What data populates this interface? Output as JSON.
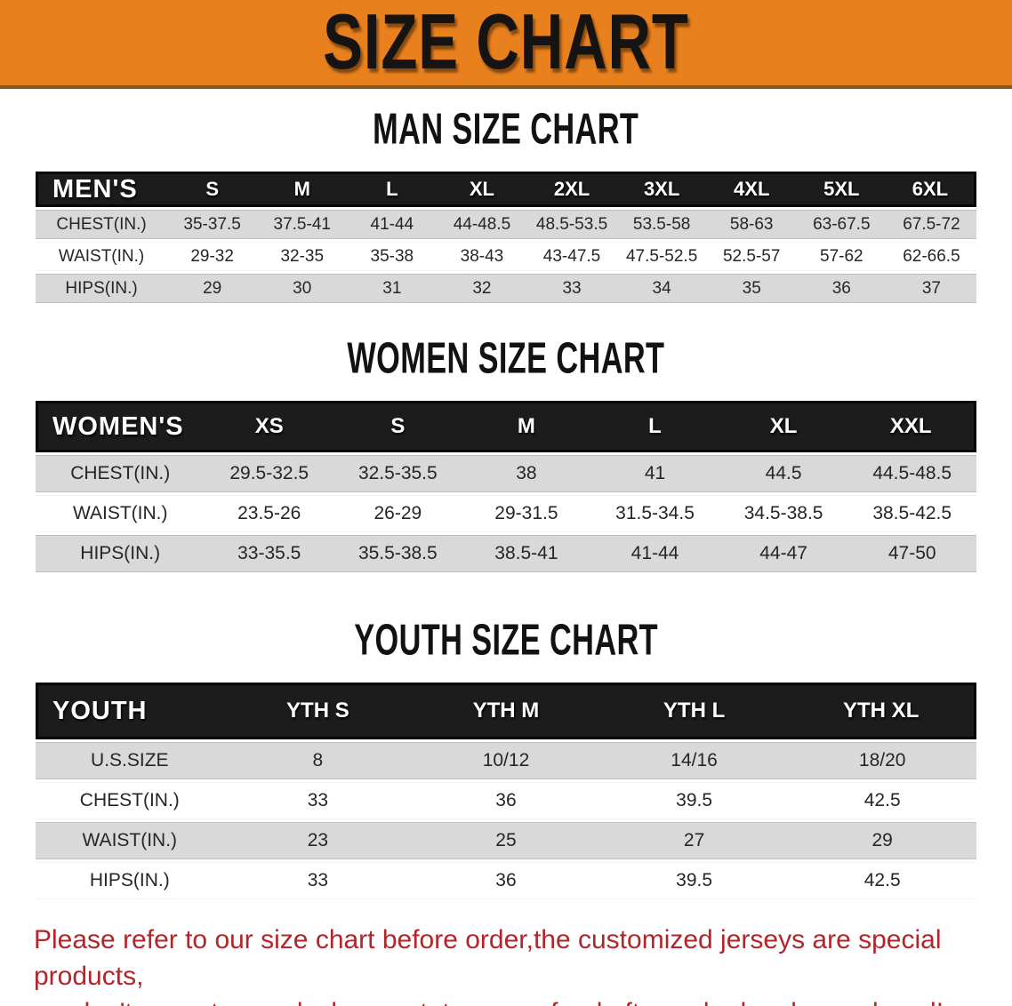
{
  "banner": {
    "title": "SIZE CHART"
  },
  "sections": {
    "men": {
      "heading": "MAN SIZE CHART",
      "table": {
        "header": [
          "MEN'S",
          "S",
          "M",
          "L",
          "XL",
          "2XL",
          "3XL",
          "4XL",
          "5XL",
          "6XL"
        ],
        "rows": [
          [
            "CHEST(IN.)",
            "35-37.5",
            "37.5-41",
            "41-44",
            "44-48.5",
            "48.5-53.5",
            "53.5-58",
            "58-63",
            "63-67.5",
            "67.5-72"
          ],
          [
            "WAIST(IN.)",
            "29-32",
            "32-35",
            "35-38",
            "38-43",
            "43-47.5",
            "47.5-52.5",
            "52.5-57",
            "57-62",
            "62-66.5"
          ],
          [
            "HIPS(IN.)",
            "29",
            "30",
            "31",
            "32",
            "33",
            "34",
            "35",
            "36",
            "37"
          ]
        ]
      }
    },
    "women": {
      "heading": "WOMEN SIZE CHART",
      "table": {
        "header": [
          "WOMEN'S",
          "XS",
          "S",
          "M",
          "L",
          "XL",
          "XXL"
        ],
        "rows": [
          [
            "CHEST(IN.)",
            "29.5-32.5",
            "32.5-35.5",
            "38",
            "41",
            "44.5",
            "44.5-48.5"
          ],
          [
            "WAIST(IN.)",
            "23.5-26",
            "26-29",
            "29-31.5",
            "31.5-34.5",
            "34.5-38.5",
            "38.5-42.5"
          ],
          [
            "HIPS(IN.)",
            "33-35.5",
            "35.5-38.5",
            "38.5-41",
            "41-44",
            "44-47",
            "47-50"
          ]
        ]
      }
    },
    "youth": {
      "heading": "YOUTH SIZE CHART",
      "table": {
        "header": [
          "YOUTH",
          "YTH S",
          "YTH M",
          "YTH L",
          "YTH XL"
        ],
        "rows": [
          [
            "U.S.SIZE",
            "8",
            "10/12",
            "14/16",
            "18/20"
          ],
          [
            "CHEST(IN.)",
            "33",
            "36",
            "39.5",
            "42.5"
          ],
          [
            "WAIST(IN.)",
            "23",
            "25",
            "27",
            "29"
          ],
          [
            "HIPS(IN.)",
            "33",
            "36",
            "39.5",
            "42.5"
          ]
        ]
      }
    }
  },
  "notice": {
    "line1": "Please refer to our size chart before order,the customized jerseys are special products,",
    "line2": "we don't accept cancel, change, teturn or refund after order has been placed!"
  },
  "colors": {
    "banner-bg": "#E8801E",
    "banner-border": "#8F5413",
    "header-bar": "#1C1C1C",
    "band-gray": "#D9D9D9",
    "notice-red": "#B2252A",
    "heading-black": "#121212"
  }
}
